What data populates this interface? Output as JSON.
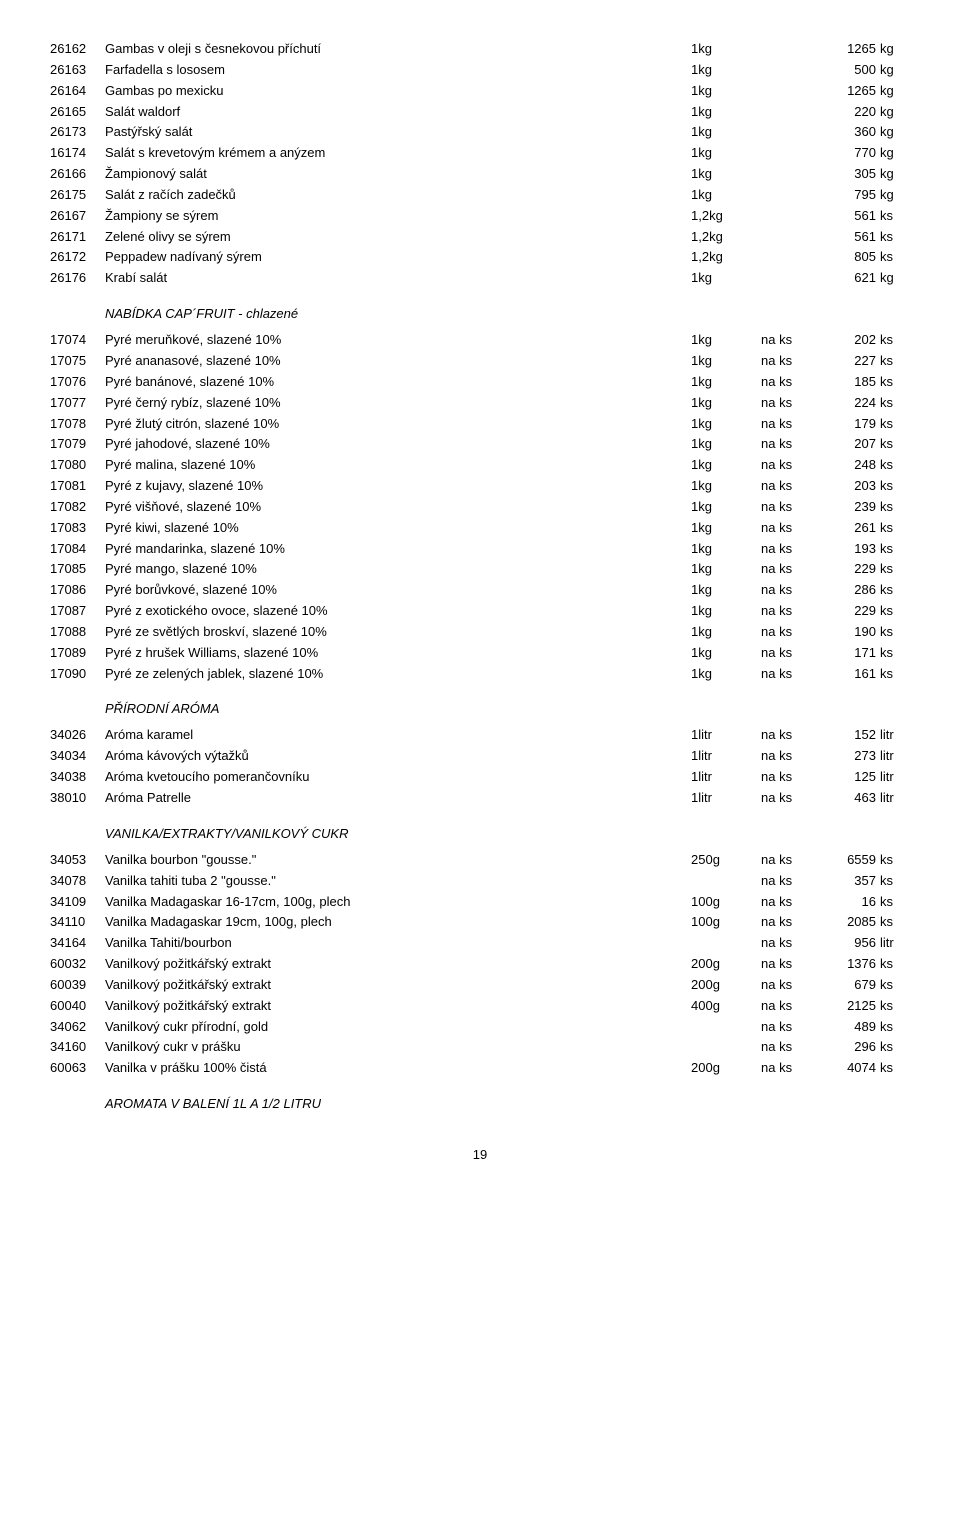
{
  "rows1": [
    {
      "code": "26162",
      "name": "Gambas v oleji s česnekovou příchutí",
      "pack": "1kg",
      "stock": "",
      "price": "1265",
      "unit": "kg"
    },
    {
      "code": "26163",
      "name": "Farfadella s lososem",
      "pack": "1kg",
      "stock": "",
      "price": "500",
      "unit": "kg"
    },
    {
      "code": "26164",
      "name": "Gambas po mexicku",
      "pack": "1kg",
      "stock": "",
      "price": "1265",
      "unit": "kg"
    },
    {
      "code": "26165",
      "name": "Salát waldorf",
      "pack": "1kg",
      "stock": "",
      "price": "220",
      "unit": "kg"
    },
    {
      "code": "26173",
      "name": "Pastýřský salát",
      "pack": "1kg",
      "stock": "",
      "price": "360",
      "unit": "kg"
    },
    {
      "code": "16174",
      "name": "Salát s krevetovým krémem a anýzem",
      "pack": "1kg",
      "stock": "",
      "price": "770",
      "unit": "kg"
    },
    {
      "code": "26166",
      "name": "Žampionový salát",
      "pack": "1kg",
      "stock": "",
      "price": "305",
      "unit": "kg"
    },
    {
      "code": "26175",
      "name": "Salát z račích zadečků",
      "pack": "1kg",
      "stock": "",
      "price": "795",
      "unit": "kg"
    },
    {
      "code": "26167",
      "name": "Žampiony se sýrem",
      "pack": "1,2kg",
      "stock": "",
      "price": "561",
      "unit": "ks"
    },
    {
      "code": "26171",
      "name": "Zelené olivy se sýrem",
      "pack": "1,2kg",
      "stock": "",
      "price": "561",
      "unit": "ks"
    },
    {
      "code": "26172",
      "name": "Peppadew nadívaný sýrem",
      "pack": "1,2kg",
      "stock": "",
      "price": "805",
      "unit": "ks"
    },
    {
      "code": "26176",
      "name": "Krabí salát",
      "pack": "1kg",
      "stock": "",
      "price": "621",
      "unit": "kg"
    }
  ],
  "section1": "NABÍDKA CAP´FRUIT - chlazené",
  "rows2": [
    {
      "code": "17074",
      "name": "Pyré meruňkové, slazené 10%",
      "pack": "1kg",
      "stock": "na ks",
      "price": "202",
      "unit": "ks"
    },
    {
      "code": "17075",
      "name": "Pyré ananasové, slazené 10%",
      "pack": "1kg",
      "stock": "na ks",
      "price": "227",
      "unit": "ks"
    },
    {
      "code": "17076",
      "name": "Pyré banánové, slazené 10%",
      "pack": "1kg",
      "stock": "na ks",
      "price": "185",
      "unit": "ks"
    },
    {
      "code": "17077",
      "name": "Pyré černý rybíz, slazené 10%",
      "pack": "1kg",
      "stock": "na ks",
      "price": "224",
      "unit": "ks"
    },
    {
      "code": "17078",
      "name": "Pyré žlutý citrón, slazené 10%",
      "pack": "1kg",
      "stock": "na ks",
      "price": "179",
      "unit": "ks"
    },
    {
      "code": "17079",
      "name": "Pyré jahodové, slazené 10%",
      "pack": "1kg",
      "stock": "na ks",
      "price": "207",
      "unit": "ks"
    },
    {
      "code": "17080",
      "name": "Pyré malina, slazené 10%",
      "pack": "1kg",
      "stock": "na ks",
      "price": "248",
      "unit": "ks"
    },
    {
      "code": "17081",
      "name": "Pyré z kujavy, slazené 10%",
      "pack": "1kg",
      "stock": "na ks",
      "price": "203",
      "unit": "ks"
    },
    {
      "code": "17082",
      "name": "Pyré višňové, slazené 10%",
      "pack": "1kg",
      "stock": "na ks",
      "price": "239",
      "unit": "ks"
    },
    {
      "code": "17083",
      "name": "Pyré kiwi, slazené 10%",
      "pack": "1kg",
      "stock": "na ks",
      "price": "261",
      "unit": "ks"
    },
    {
      "code": "17084",
      "name": "Pyré mandarinka, slazené 10%",
      "pack": "1kg",
      "stock": "na ks",
      "price": "193",
      "unit": "ks"
    },
    {
      "code": "17085",
      "name": "Pyré mango, slazené 10%",
      "pack": "1kg",
      "stock": "na ks",
      "price": "229",
      "unit": "ks"
    },
    {
      "code": "17086",
      "name": "Pyré borůvkové, slazené 10%",
      "pack": "1kg",
      "stock": "na ks",
      "price": "286",
      "unit": "ks"
    },
    {
      "code": "17087",
      "name": "Pyré z exotického ovoce, slazené 10%",
      "pack": "1kg",
      "stock": "na ks",
      "price": "229",
      "unit": "ks"
    },
    {
      "code": "17088",
      "name": "Pyré ze světlých broskví, slazené 10%",
      "pack": "1kg",
      "stock": "na ks",
      "price": "190",
      "unit": "ks"
    },
    {
      "code": "17089",
      "name": "Pyré z hrušek Williams, slazené 10%",
      "pack": "1kg",
      "stock": "na ks",
      "price": "171",
      "unit": "ks"
    },
    {
      "code": "17090",
      "name": "Pyré ze zelených jablek, slazené 10%",
      "pack": "1kg",
      "stock": "na ks",
      "price": "161",
      "unit": "ks"
    }
  ],
  "section2": "PŘÍRODNÍ ARÓMA",
  "rows3": [
    {
      "code": "34026",
      "name": "Aróma karamel",
      "pack": "1litr",
      "stock": "na ks",
      "price": "152",
      "unit": "litr"
    },
    {
      "code": "34034",
      "name": "Aróma kávových výtažků",
      "pack": "1litr",
      "stock": "na ks",
      "price": "273",
      "unit": "litr"
    },
    {
      "code": "34038",
      "name": "Aróma kvetoucího pomerančovníku",
      "pack": "1litr",
      "stock": "na ks",
      "price": "125",
      "unit": "litr"
    },
    {
      "code": "38010",
      "name": "Aróma Patrelle",
      "pack": "1litr",
      "stock": "na ks",
      "price": "463",
      "unit": "litr"
    }
  ],
  "section3": "VANILKA/EXTRAKTY/VANILKOVÝ CUKR",
  "rows4": [
    {
      "code": "34053",
      "name": "Vanilka bourbon \"gousse.\"",
      "pack": "250g",
      "stock": "na ks",
      "price": "6559",
      "unit": "ks"
    },
    {
      "code": "34078",
      "name": "Vanilka tahiti tuba 2 \"gousse.\"",
      "pack": "",
      "stock": "na ks",
      "price": "357",
      "unit": "ks"
    },
    {
      "code": "34109",
      "name": "Vanilka Madagaskar 16-17cm, 100g, plech",
      "pack": "100g",
      "stock": "na ks",
      "price": "16",
      "unit": "ks"
    },
    {
      "code": "34110",
      "name": "Vanilka Madagaskar 19cm, 100g, plech",
      "pack": "100g",
      "stock": "na ks",
      "price": "2085",
      "unit": "ks"
    },
    {
      "code": "34164",
      "name": "Vanilka Tahiti/bourbon",
      "pack": "",
      "stock": "na ks",
      "price": "956",
      "unit": "litr"
    },
    {
      "code": "60032",
      "name": "Vanilkový požitkářský extrakt",
      "pack": "200g",
      "stock": "na ks",
      "price": "1376",
      "unit": "ks"
    },
    {
      "code": "60039",
      "name": "Vanilkový požitkářský extrakt",
      "pack": "200g",
      "stock": "na ks",
      "price": "679",
      "unit": "ks"
    },
    {
      "code": "60040",
      "name": "Vanilkový požitkářský extrakt",
      "pack": "400g",
      "stock": "na ks",
      "price": "2125",
      "unit": "ks"
    },
    {
      "code": "34062",
      "name": "Vanilkový cukr přírodní, gold",
      "pack": "",
      "stock": "na ks",
      "price": "489",
      "unit": "ks"
    },
    {
      "code": "34160",
      "name": "Vanilkový cukr v prášku",
      "pack": "",
      "stock": "na ks",
      "price": "296",
      "unit": "ks"
    },
    {
      "code": "60063",
      "name": "Vanilka v prášku 100% čistá",
      "pack": "200g",
      "stock": "na ks",
      "price": "4074",
      "unit": "ks"
    }
  ],
  "section4": "AROMATA V BALENÍ 1L A 1/2 LITRU",
  "page": "19"
}
